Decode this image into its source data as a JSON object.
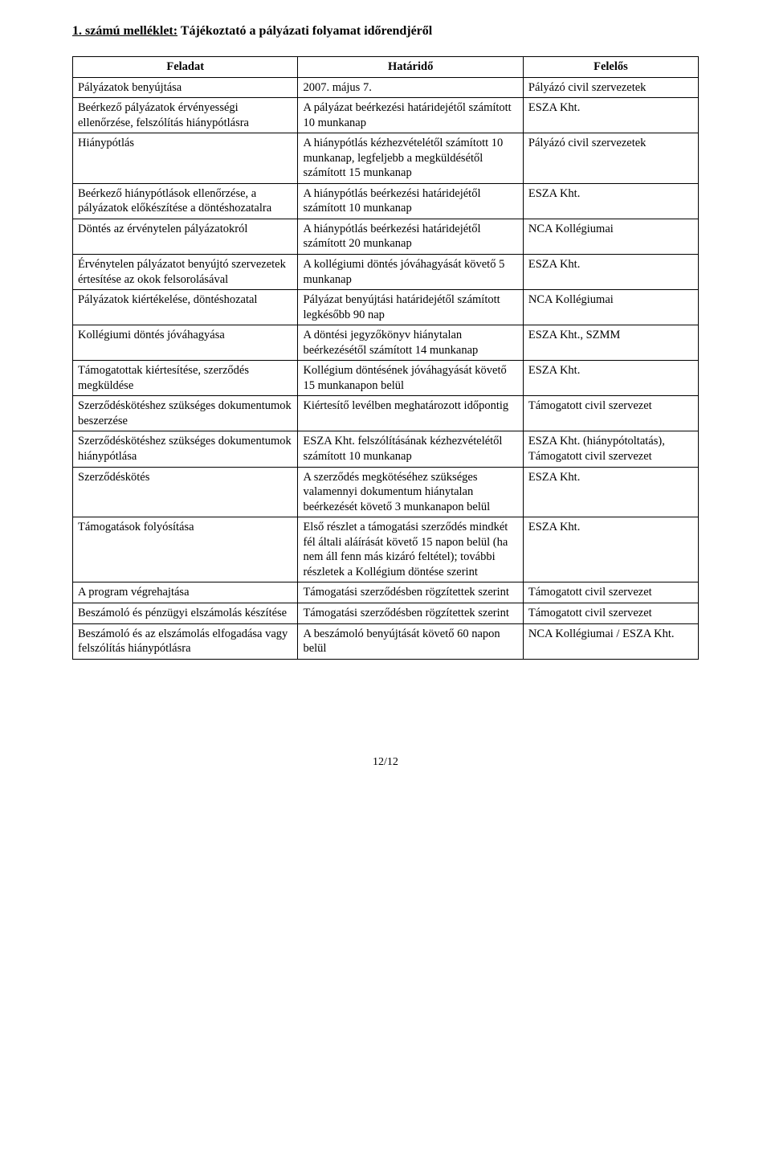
{
  "title_prefix": "1. számú melléklet:",
  "title_rest": " Tájékoztató a pályázati folyamat időrendjéről",
  "columns": {
    "c1": "Feladat",
    "c2": "Határidő",
    "c3": "Felelős"
  },
  "rows": [
    {
      "c1": "Pályázatok benyújtása",
      "c2": "2007. május 7.",
      "c3": "Pályázó civil szervezetek"
    },
    {
      "c1": "Beérkező pályázatok érvényességi ellenőrzése, felszólítás hiánypótlásra",
      "c2": "A pályázat beérkezési határidejétől számított 10 munkanap",
      "c3": "ESZA Kht."
    },
    {
      "c1": "Hiánypótlás",
      "c2": "A hiánypótlás kézhezvételétől számított 10 munkanap, legfeljebb a megküldésétől számított 15 munkanap",
      "c3": "Pályázó civil szervezetek"
    },
    {
      "c1": "Beérkező hiánypótlások ellenőrzése, a pályázatok előkészítése a döntéshozatalra",
      "c2": "A hiánypótlás beérkezési határidejétől számított 10 munkanap",
      "c3": "ESZA Kht."
    },
    {
      "c1": "Döntés az érvénytelen pályázatokról",
      "c2": "A hiánypótlás beérkezési határidejétől számított 20 munkanap",
      "c3": "NCA Kollégiumai"
    },
    {
      "c1": "Érvénytelen pályázatot benyújtó szervezetek értesítése az okok felsorolásával",
      "c2": "A kollégiumi döntés jóváhagyását követő 5 munkanap",
      "c3": "ESZA Kht."
    },
    {
      "c1": "Pályázatok kiértékelése, döntéshozatal",
      "c2": "Pályázat benyújtási határidejétől számított legkésőbb 90 nap",
      "c3": "NCA Kollégiumai"
    },
    {
      "c1": "Kollégiumi döntés jóváhagyása",
      "c2": "A döntési jegyzőkönyv hiánytalan beérkezésétől számított 14 munkanap",
      "c3": "ESZA Kht., SZMM"
    },
    {
      "c1": "Támogatottak kiértesítése, szerződés megküldése",
      "c2": "Kollégium döntésének jóváhagyását követő 15 munkanapon belül",
      "c3": "ESZA Kht."
    },
    {
      "c1": "Szerződéskötéshez szükséges dokumentumok beszerzése",
      "c2": "Kiértesítő levélben meghatározott időpontig",
      "c3": "Támogatott civil szervezet"
    },
    {
      "c1": "Szerződéskötéshez szükséges dokumentumok hiánypótlása",
      "c2": "ESZA Kht. felszólításának kézhezvételétől számított 10 munkanap",
      "c3": "ESZA Kht. (hiánypótoltatás), Támogatott civil szervezet"
    },
    {
      "c1": "Szerződéskötés",
      "c2": "A szerződés megkötéséhez szükséges valamennyi dokumentum hiánytalan beérkezését követő 3 munkanapon belül",
      "c3": "ESZA Kht."
    },
    {
      "c1": "Támogatások folyósítása",
      "c2": "Első részlet a támogatási szerződés mindkét fél általi aláírását követő 15 napon belül (ha nem áll fenn más kizáró feltétel); további részletek a Kollégium döntése szerint",
      "c3": "ESZA Kht."
    },
    {
      "c1": "A program végrehajtása",
      "c2": "Támogatási szerződésben rögzítettek szerint",
      "c3": "Támogatott civil szervezet"
    },
    {
      "c1": "Beszámoló és pénzügyi elszámolás készítése",
      "c2": "Támogatási szerződésben rögzítettek szerint",
      "c3": "Támogatott civil szervezet"
    },
    {
      "c1": "Beszámoló és az elszámolás elfogadása vagy felszólítás hiánypótlásra",
      "c2": "A beszámoló benyújtását követő 60 napon belül",
      "c3": "NCA Kollégiumai / ESZA Kht."
    }
  ],
  "footer": "12/12"
}
